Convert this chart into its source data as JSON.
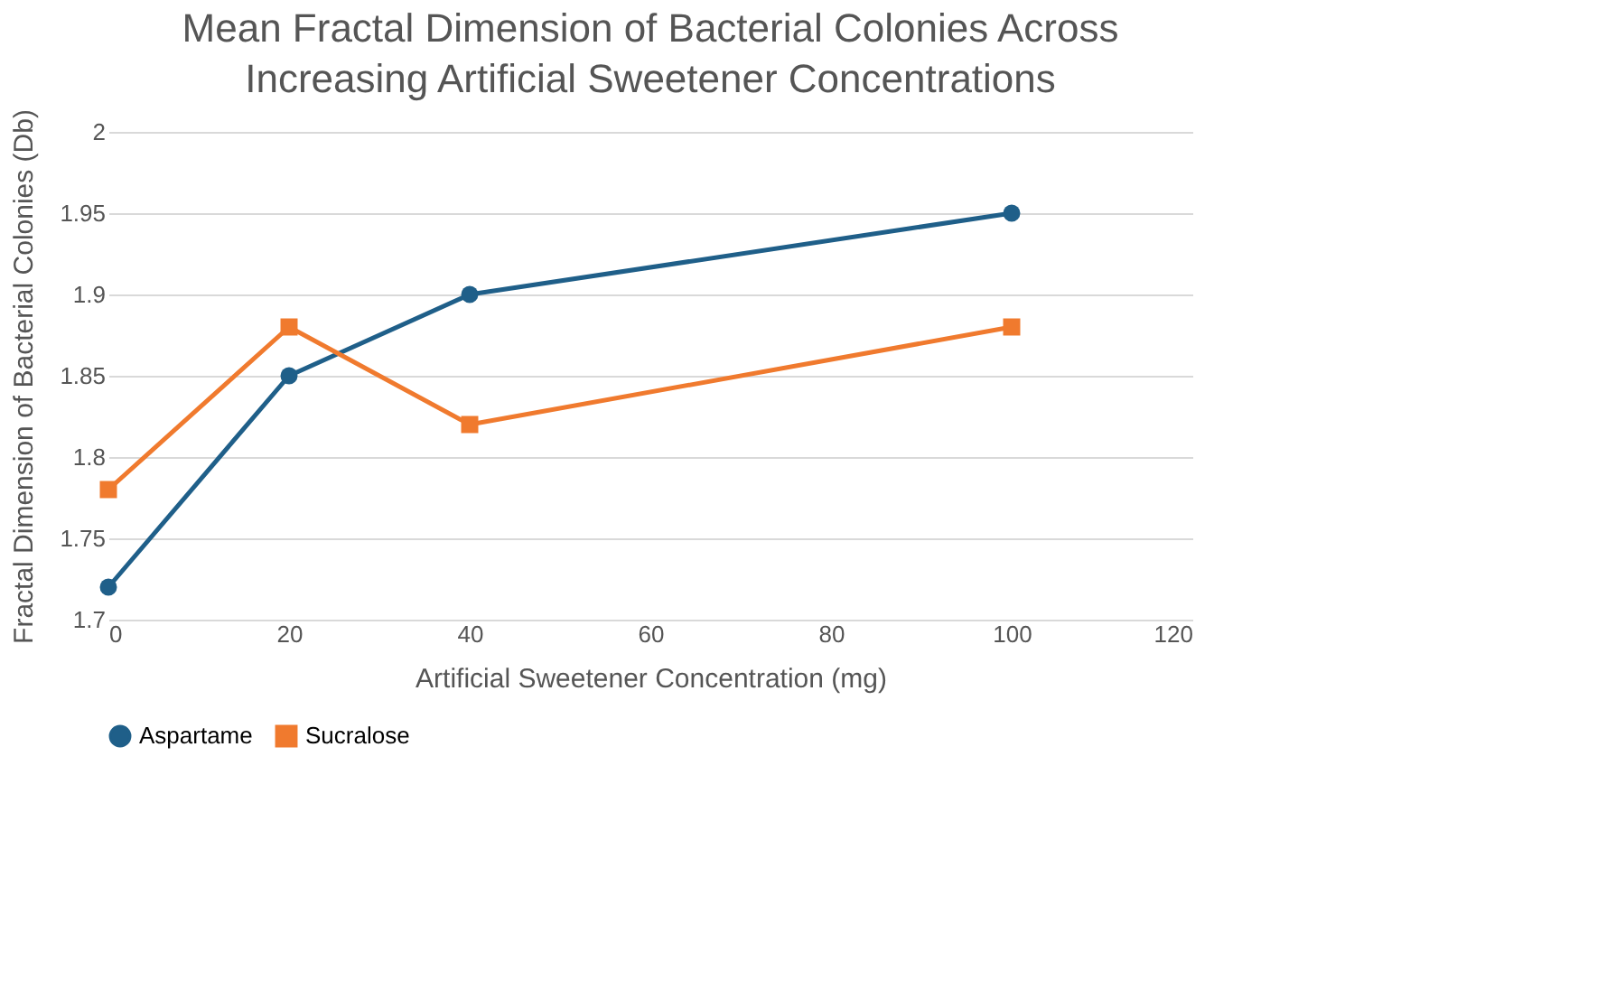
{
  "chart_data": {
    "type": "line",
    "title": "Mean Fractal Dimension of Bacterial Colonies Across Increasing Artificial Sweetener Concentrations",
    "xlabel": "Artificial Sweetener Concentration (mg)",
    "ylabel": "Fractal Dimension of Bacterial Colonies (Db)",
    "x": [
      0,
      20,
      40,
      100
    ],
    "series": [
      {
        "name": "Aspartame",
        "color": "#1f5f89",
        "marker": "circle",
        "values": [
          1.72,
          1.85,
          1.9,
          1.95
        ]
      },
      {
        "name": "Sucralose",
        "color": "#f07a2e",
        "marker": "square",
        "values": [
          1.78,
          1.88,
          1.82,
          1.88
        ]
      }
    ],
    "xlim": [
      0,
      120
    ],
    "xticks": [
      0,
      20,
      40,
      60,
      80,
      100,
      120
    ],
    "ylim": [
      1.7,
      2
    ],
    "yticks": [
      1.7,
      1.75,
      1.8,
      1.85,
      1.9,
      1.95,
      2
    ],
    "grid": "y",
    "legend": "bottom",
    "line_style": "solid"
  }
}
